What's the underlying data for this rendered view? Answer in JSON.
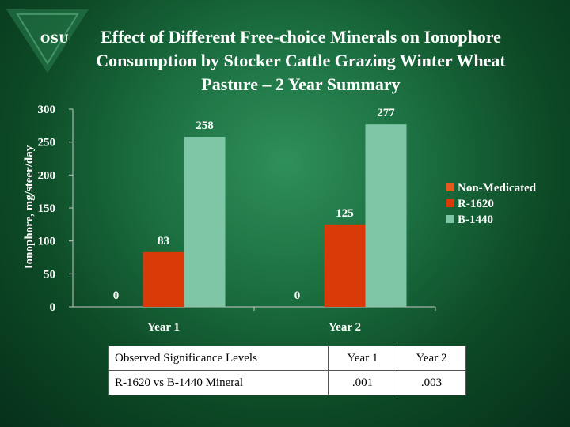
{
  "logo": {
    "text": "OSU"
  },
  "title": {
    "line1": "Effect of Different Free-choice Minerals on Ionophore",
    "line2": "Consumption by Stocker Cattle Grazing Winter Wheat",
    "line3": "Pasture – 2 Year Summary"
  },
  "chart_data": {
    "type": "bar",
    "categories": [
      "Year 1",
      "Year 2"
    ],
    "series": [
      {
        "name": "Non-Medicated",
        "values": [
          0,
          0
        ],
        "color": "#e8581c"
      },
      {
        "name": "R-1620",
        "values": [
          83,
          125
        ],
        "color": "#d93a08"
      },
      {
        "name": "B-1440",
        "values": [
          258,
          277
        ],
        "color": "#7fc6a6"
      }
    ],
    "data_labels": [
      [
        "0",
        "83",
        "258"
      ],
      [
        "0",
        "125",
        "277"
      ]
    ],
    "ylabel": "Ionophore, mg/steer/day",
    "xlabel": "",
    "ylim": [
      0,
      300
    ],
    "yticks": [
      0,
      50,
      100,
      150,
      200,
      250,
      300
    ],
    "grid": false,
    "legend": "right"
  },
  "table": {
    "headers": [
      "Observed Significance Levels",
      "Year 1",
      "Year 2"
    ],
    "rows": [
      [
        "R-1620 vs B-1440 Mineral",
        ".001",
        ".003"
      ]
    ]
  }
}
